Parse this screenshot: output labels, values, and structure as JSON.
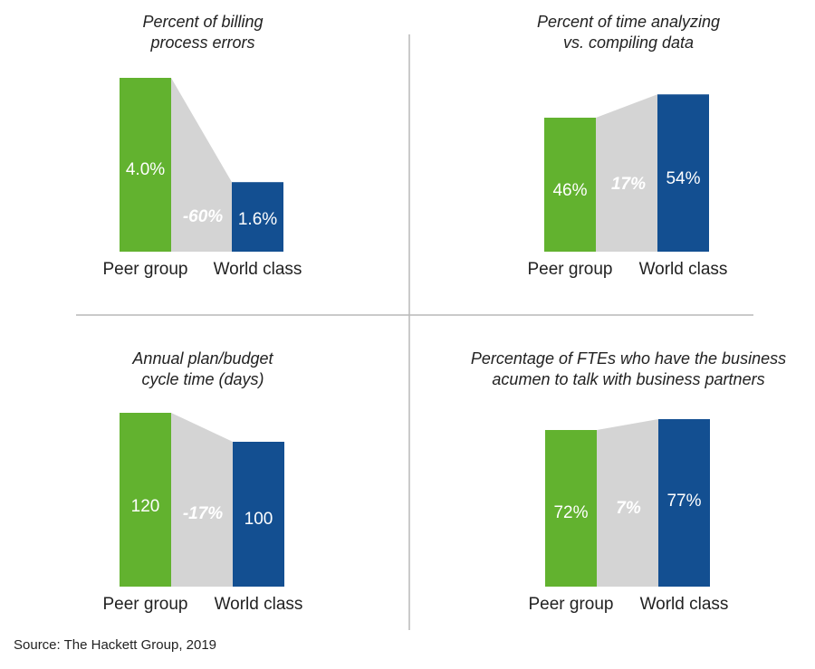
{
  "colors": {
    "peer": "#62b22f",
    "world": "#134f91",
    "connector": "#d4d4d4",
    "divider": "#b9b9b9"
  },
  "source": "Source: The Hackett Group, 2019",
  "chart_data": [
    {
      "type": "bar",
      "title": [
        "Percent of billing",
        "process errors"
      ],
      "categories": [
        "Peer group",
        "World class"
      ],
      "values": [
        4.0,
        1.6
      ],
      "value_labels": [
        "4.0%",
        "1.6%"
      ],
      "difference_label": "-60%",
      "unit": "%"
    },
    {
      "type": "bar",
      "title": [
        "Percent of time analyzing",
        "vs. compiling data"
      ],
      "categories": [
        "Peer group",
        "World class"
      ],
      "values": [
        46,
        54
      ],
      "value_labels": [
        "46%",
        "54%"
      ],
      "difference_label": "17%",
      "unit": "%"
    },
    {
      "type": "bar",
      "title": [
        "Annual plan/budget",
        "cycle time (days)"
      ],
      "categories": [
        "Peer group",
        "World class"
      ],
      "values": [
        120,
        100
      ],
      "value_labels": [
        "120",
        "100"
      ],
      "difference_label": "-17%",
      "unit": "days"
    },
    {
      "type": "bar",
      "title": [
        "Percentage of FTEs who have the business",
        "acumen to talk with business partners"
      ],
      "categories": [
        "Peer group",
        "World class"
      ],
      "values": [
        72,
        77
      ],
      "value_labels": [
        "72%",
        "77%"
      ],
      "difference_label": "7%",
      "unit": "%"
    }
  ]
}
